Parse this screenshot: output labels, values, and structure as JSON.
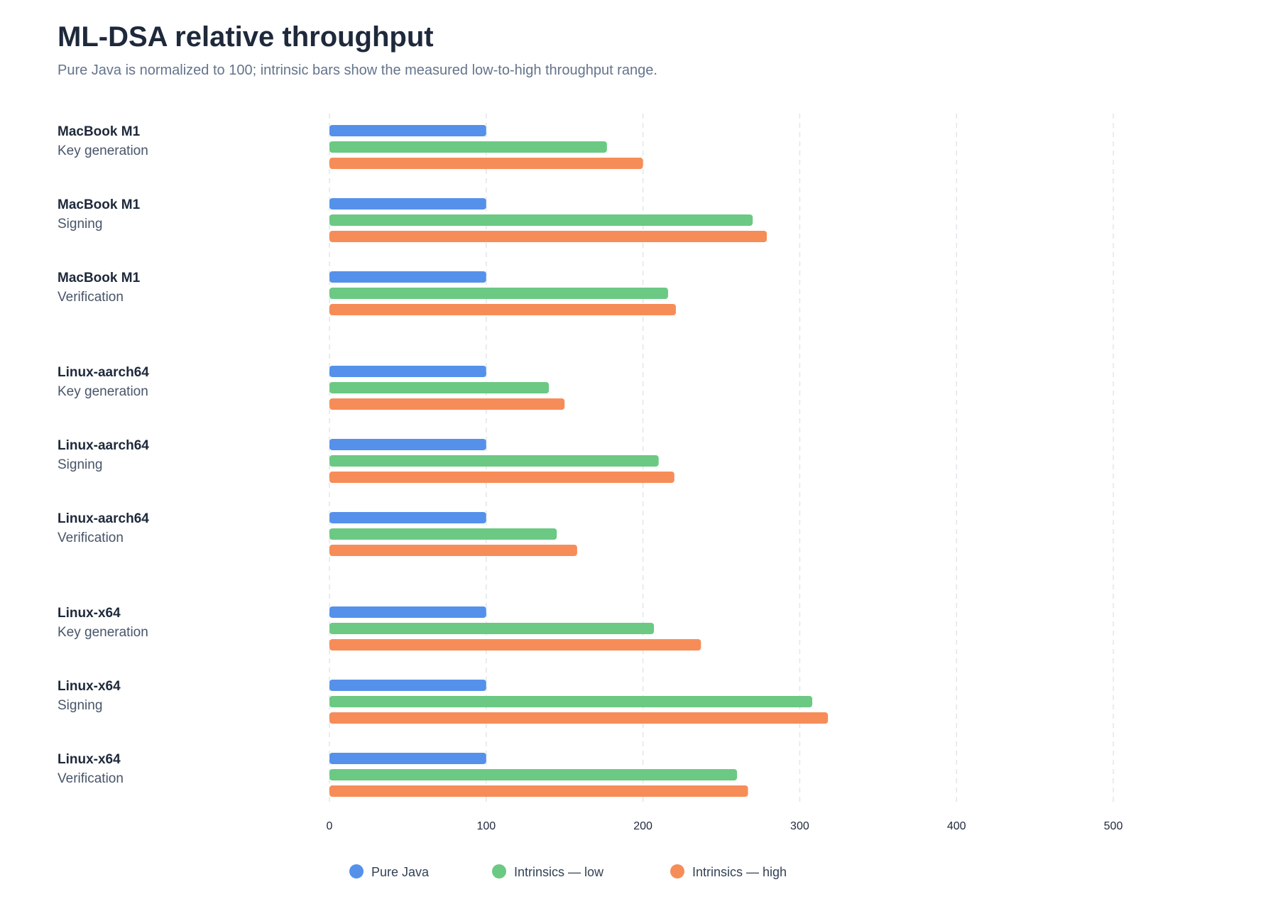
{
  "chart_data": {
    "type": "bar",
    "orientation": "horizontal",
    "title": "ML-DSA relative throughput",
    "subtitle": "Pure Java is normalized to 100; intrinsic bars show the measured low-to-high throughput range.",
    "xlim": [
      0,
      500
    ],
    "xticks": [
      "0",
      "100",
      "200",
      "300",
      "400",
      "500"
    ],
    "xtick_values": [
      0,
      100,
      200,
      300,
      400,
      500
    ],
    "grid": "vertical dashed",
    "legend_position": "bottom",
    "groups": [
      {
        "platform": "MacBook M1",
        "rows": [
          {
            "platform": "MacBook M1",
            "operation": "Key generation",
            "values": [
              100,
              177,
              200
            ]
          },
          {
            "platform": "MacBook M1",
            "operation": "Signing",
            "values": [
              100,
              270,
              279
            ]
          },
          {
            "platform": "MacBook M1",
            "operation": "Verification",
            "values": [
              100,
              216,
              221
            ]
          }
        ]
      },
      {
        "platform": "Linux-aarch64",
        "rows": [
          {
            "platform": "Linux-aarch64",
            "operation": "Key generation",
            "values": [
              100,
              140,
              150
            ]
          },
          {
            "platform": "Linux-aarch64",
            "operation": "Signing",
            "values": [
              100,
              210,
              220
            ]
          },
          {
            "platform": "Linux-aarch64",
            "operation": "Verification",
            "values": [
              100,
              145,
              158
            ]
          }
        ]
      },
      {
        "platform": "Linux-x64",
        "rows": [
          {
            "platform": "Linux-x64",
            "operation": "Key generation",
            "values": [
              100,
              207,
              237
            ]
          },
          {
            "platform": "Linux-x64",
            "operation": "Signing",
            "values": [
              100,
              308,
              318
            ]
          },
          {
            "platform": "Linux-x64",
            "operation": "Verification",
            "values": [
              100,
              260,
              267
            ]
          }
        ]
      }
    ],
    "series": [
      {
        "name": "Pure Java",
        "color": "#5591ea"
      },
      {
        "name": "Intrinsics — low",
        "color": "#6bc983"
      },
      {
        "name": "Intrinsics — high",
        "color": "#f68d58"
      }
    ]
  }
}
